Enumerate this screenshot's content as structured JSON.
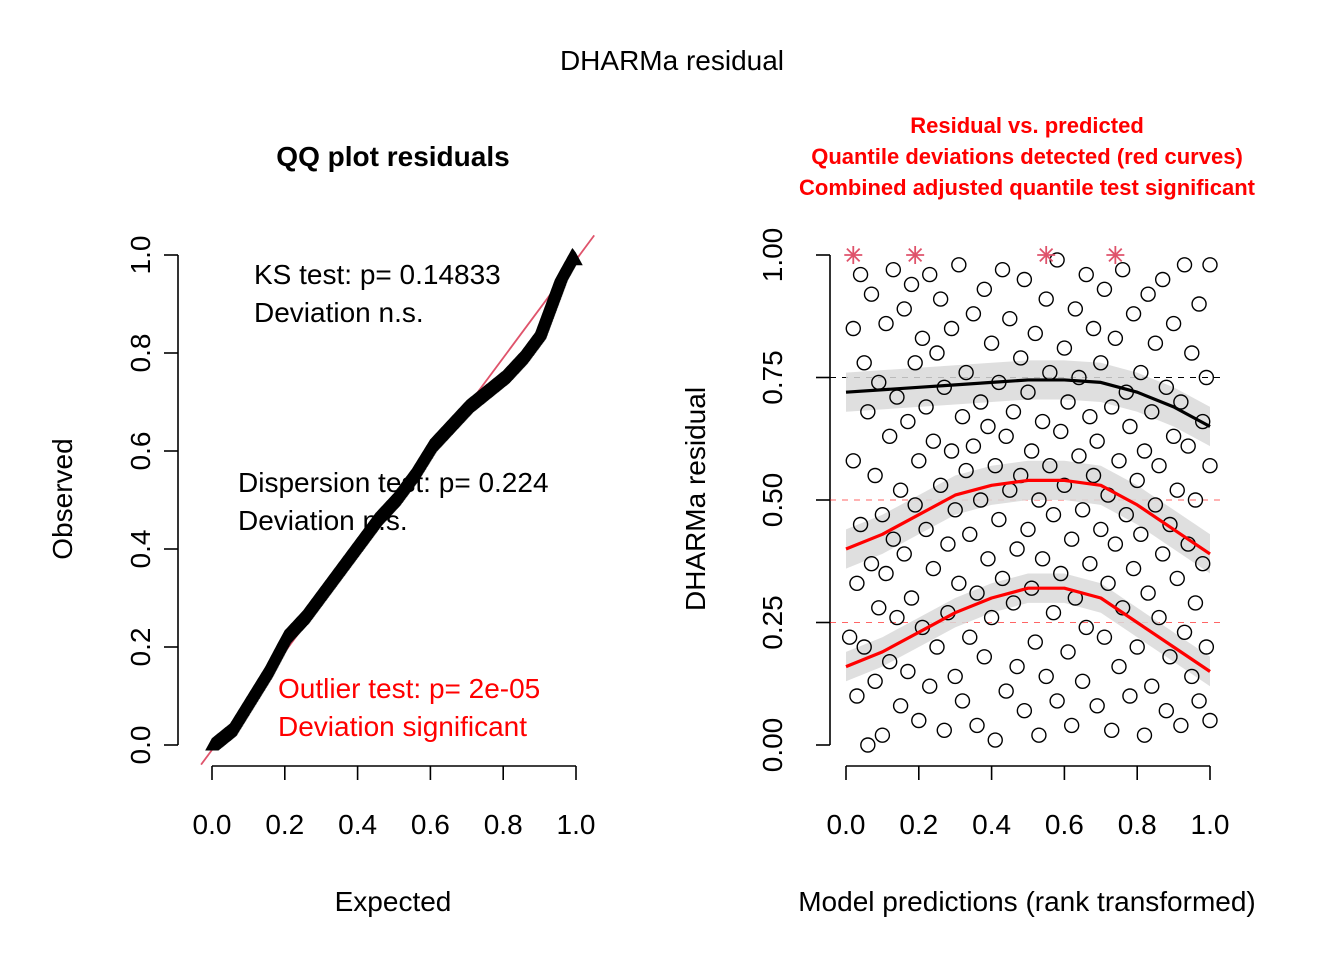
{
  "title": "DHARMa residual",
  "left_panel": {
    "title": "QQ plot residuals",
    "xlabel": "Expected",
    "ylabel": "Observed",
    "ks_line1": "KS test: p= 0.14833",
    "ks_line2": "Deviation  n.s.",
    "disp_line1": "Dispersion test: p= 0.224",
    "disp_line2": "Deviation  n.s.",
    "outlier_line1": "Outlier test: p= 2e-05",
    "outlier_line2": "Deviation  significant"
  },
  "right_panel": {
    "title_line1": "Residual vs. predicted",
    "title_line2": "Quantile deviations detected (red curves)",
    "title_line3": "Combined adjusted quantile test significant",
    "xlabel": "Model predictions (rank transformed)",
    "ylabel": "DHARMa residual"
  },
  "colors": {
    "red": "#ff0000",
    "reference_line": "#df536b",
    "band": "#d9d9d9"
  },
  "chart_data": [
    {
      "type": "scatter",
      "subtype": "qq",
      "title": "QQ plot residuals",
      "xlabel": "Expected",
      "ylabel": "Observed",
      "xticks": [
        "0.0",
        "0.2",
        "0.4",
        "0.6",
        "0.8",
        "1.0"
      ],
      "yticks": [
        "0.0",
        "0.2",
        "0.4",
        "0.6",
        "0.8",
        "1.0"
      ],
      "xlim": [
        0,
        1
      ],
      "ylim": [
        0,
        1
      ],
      "qq_curve": {
        "x": [
          0.0,
          0.05,
          0.1,
          0.15,
          0.2,
          0.25,
          0.3,
          0.35,
          0.4,
          0.45,
          0.5,
          0.55,
          0.6,
          0.65,
          0.7,
          0.75,
          0.8,
          0.85,
          0.9,
          0.93,
          0.96,
          0.99,
          1.0
        ],
        "y": [
          0.0,
          0.03,
          0.09,
          0.15,
          0.22,
          0.26,
          0.31,
          0.36,
          0.41,
          0.46,
          0.5,
          0.55,
          0.61,
          0.65,
          0.69,
          0.72,
          0.75,
          0.79,
          0.84,
          0.9,
          0.96,
          1.0,
          0.99
        ]
      },
      "reference_line": {
        "intercept": 0,
        "slope": 1
      },
      "annotations": [
        "KS test: p= 0.14833",
        "Deviation  n.s.",
        "Dispersion test: p= 0.224",
        "Deviation  n.s.",
        "Outlier test: p= 2e-05",
        "Deviation  significant"
      ]
    },
    {
      "type": "scatter",
      "title": "Residual vs. predicted",
      "xlabel": "Model predictions (rank transformed)",
      "ylabel": "DHARMa residual",
      "xticks": [
        "0.0",
        "0.2",
        "0.4",
        "0.6",
        "0.8",
        "1.0"
      ],
      "yticks": [
        "0.00",
        "0.25",
        "0.50",
        "0.75",
        "1.00"
      ],
      "xlim": [
        0,
        1
      ],
      "ylim": [
        0,
        1
      ],
      "reference_lines": [
        {
          "y": 0.25,
          "style": "dashed",
          "color": "#ff0000"
        },
        {
          "y": 0.5,
          "style": "dashed",
          "color": "#ff0000"
        },
        {
          "y": 0.75,
          "style": "dashed",
          "color": "#000000"
        }
      ],
      "quantile_curves": [
        {
          "quantile": 0.25,
          "color": "#ff0000",
          "x": [
            0,
            0.1,
            0.2,
            0.3,
            0.4,
            0.5,
            0.6,
            0.7,
            0.8,
            0.9,
            1.0
          ],
          "y": [
            0.16,
            0.19,
            0.23,
            0.27,
            0.3,
            0.32,
            0.32,
            0.3,
            0.25,
            0.2,
            0.15
          ],
          "band": 0.03
        },
        {
          "quantile": 0.5,
          "color": "#ff0000",
          "x": [
            0,
            0.1,
            0.2,
            0.3,
            0.4,
            0.5,
            0.6,
            0.7,
            0.8,
            0.9,
            1.0
          ],
          "y": [
            0.4,
            0.43,
            0.47,
            0.51,
            0.53,
            0.54,
            0.54,
            0.53,
            0.49,
            0.44,
            0.39
          ],
          "band": 0.04
        },
        {
          "quantile": 0.75,
          "color": "#000000",
          "x": [
            0,
            0.1,
            0.2,
            0.3,
            0.4,
            0.5,
            0.6,
            0.7,
            0.8,
            0.9,
            1.0
          ],
          "y": [
            0.72,
            0.725,
            0.73,
            0.735,
            0.74,
            0.745,
            0.745,
            0.74,
            0.72,
            0.69,
            0.65
          ],
          "band": 0.04
        }
      ],
      "outlier_markers": {
        "x": [
          0.02,
          0.19,
          0.55,
          0.74
        ],
        "y": [
          1.0,
          1.0,
          1.0,
          1.0
        ],
        "color": "#df536b"
      },
      "points": [
        [
          0.01,
          0.22
        ],
        [
          0.02,
          0.85
        ],
        [
          0.02,
          0.58
        ],
        [
          0.03,
          0.33
        ],
        [
          0.03,
          0.1
        ],
        [
          0.04,
          0.96
        ],
        [
          0.04,
          0.45
        ],
        [
          0.05,
          0.2
        ],
        [
          0.05,
          0.78
        ],
        [
          0.06,
          0.0
        ],
        [
          0.06,
          0.68
        ],
        [
          0.07,
          0.37
        ],
        [
          0.07,
          0.92
        ],
        [
          0.08,
          0.13
        ],
        [
          0.08,
          0.55
        ],
        [
          0.09,
          0.28
        ],
        [
          0.09,
          0.74
        ],
        [
          0.1,
          0.02
        ],
        [
          0.1,
          0.47
        ],
        [
          0.11,
          0.86
        ],
        [
          0.11,
          0.35
        ],
        [
          0.12,
          0.17
        ],
        [
          0.12,
          0.63
        ],
        [
          0.13,
          0.97
        ],
        [
          0.13,
          0.42
        ],
        [
          0.14,
          0.26
        ],
        [
          0.14,
          0.71
        ],
        [
          0.15,
          0.08
        ],
        [
          0.15,
          0.52
        ],
        [
          0.16,
          0.89
        ],
        [
          0.16,
          0.39
        ],
        [
          0.17,
          0.15
        ],
        [
          0.17,
          0.66
        ],
        [
          0.18,
          0.94
        ],
        [
          0.18,
          0.3
        ],
        [
          0.19,
          0.49
        ],
        [
          0.19,
          0.78
        ],
        [
          0.2,
          0.05
        ],
        [
          0.2,
          0.58
        ],
        [
          0.21,
          0.83
        ],
        [
          0.21,
          0.24
        ],
        [
          0.22,
          0.44
        ],
        [
          0.22,
          0.69
        ],
        [
          0.23,
          0.96
        ],
        [
          0.23,
          0.12
        ],
        [
          0.24,
          0.62
        ],
        [
          0.24,
          0.36
        ],
        [
          0.25,
          0.8
        ],
        [
          0.25,
          0.2
        ],
        [
          0.26,
          0.53
        ],
        [
          0.26,
          0.91
        ],
        [
          0.27,
          0.03
        ],
        [
          0.27,
          0.73
        ],
        [
          0.28,
          0.41
        ],
        [
          0.28,
          0.27
        ],
        [
          0.29,
          0.6
        ],
        [
          0.29,
          0.85
        ],
        [
          0.3,
          0.14
        ],
        [
          0.3,
          0.48
        ],
        [
          0.31,
          0.98
        ],
        [
          0.31,
          0.33
        ],
        [
          0.32,
          0.67
        ],
        [
          0.32,
          0.09
        ],
        [
          0.33,
          0.56
        ],
        [
          0.33,
          0.76
        ],
        [
          0.34,
          0.22
        ],
        [
          0.34,
          0.43
        ],
        [
          0.35,
          0.88
        ],
        [
          0.35,
          0.61
        ],
        [
          0.36,
          0.31
        ],
        [
          0.36,
          0.04
        ],
        [
          0.37,
          0.7
        ],
        [
          0.37,
          0.5
        ],
        [
          0.38,
          0.93
        ],
        [
          0.38,
          0.18
        ],
        [
          0.39,
          0.38
        ],
        [
          0.39,
          0.65
        ],
        [
          0.4,
          0.82
        ],
        [
          0.4,
          0.26
        ],
        [
          0.41,
          0.57
        ],
        [
          0.41,
          0.01
        ],
        [
          0.42,
          0.46
        ],
        [
          0.42,
          0.74
        ],
        [
          0.43,
          0.97
        ],
        [
          0.43,
          0.34
        ],
        [
          0.44,
          0.11
        ],
        [
          0.44,
          0.63
        ],
        [
          0.45,
          0.52
        ],
        [
          0.45,
          0.87
        ],
        [
          0.46,
          0.29
        ],
        [
          0.46,
          0.68
        ],
        [
          0.47,
          0.4
        ],
        [
          0.47,
          0.16
        ],
        [
          0.48,
          0.79
        ],
        [
          0.48,
          0.55
        ],
        [
          0.49,
          0.95
        ],
        [
          0.49,
          0.07
        ],
        [
          0.5,
          0.44
        ],
        [
          0.5,
          0.72
        ],
        [
          0.51,
          0.32
        ],
        [
          0.51,
          0.6
        ],
        [
          0.52,
          0.21
        ],
        [
          0.52,
          0.84
        ],
        [
          0.53,
          0.5
        ],
        [
          0.53,
          0.02
        ],
        [
          0.54,
          0.66
        ],
        [
          0.54,
          0.38
        ],
        [
          0.55,
          0.91
        ],
        [
          0.55,
          0.14
        ],
        [
          0.56,
          0.57
        ],
        [
          0.56,
          0.76
        ],
        [
          0.57,
          0.27
        ],
        [
          0.57,
          0.47
        ],
        [
          0.58,
          0.99
        ],
        [
          0.58,
          0.09
        ],
        [
          0.59,
          0.64
        ],
        [
          0.59,
          0.35
        ],
        [
          0.6,
          0.81
        ],
        [
          0.6,
          0.53
        ],
        [
          0.61,
          0.19
        ],
        [
          0.61,
          0.7
        ],
        [
          0.62,
          0.42
        ],
        [
          0.62,
          0.04
        ],
        [
          0.63,
          0.89
        ],
        [
          0.63,
          0.3
        ],
        [
          0.64,
          0.59
        ],
        [
          0.64,
          0.75
        ],
        [
          0.65,
          0.13
        ],
        [
          0.65,
          0.48
        ],
        [
          0.66,
          0.96
        ],
        [
          0.66,
          0.24
        ],
        [
          0.67,
          0.67
        ],
        [
          0.67,
          0.37
        ],
        [
          0.68,
          0.85
        ],
        [
          0.68,
          0.55
        ],
        [
          0.69,
          0.08
        ],
        [
          0.69,
          0.62
        ],
        [
          0.7,
          0.44
        ],
        [
          0.7,
          0.78
        ],
        [
          0.71,
          0.22
        ],
        [
          0.71,
          0.93
        ],
        [
          0.72,
          0.33
        ],
        [
          0.72,
          0.51
        ],
        [
          0.73,
          0.69
        ],
        [
          0.73,
          0.03
        ],
        [
          0.74,
          0.41
        ],
        [
          0.74,
          0.83
        ],
        [
          0.75,
          0.16
        ],
        [
          0.75,
          0.58
        ],
        [
          0.76,
          0.97
        ],
        [
          0.76,
          0.28
        ],
        [
          0.77,
          0.72
        ],
        [
          0.77,
          0.47
        ],
        [
          0.78,
          0.1
        ],
        [
          0.78,
          0.65
        ],
        [
          0.79,
          0.88
        ],
        [
          0.79,
          0.36
        ],
        [
          0.8,
          0.54
        ],
        [
          0.8,
          0.2
        ],
        [
          0.81,
          0.76
        ],
        [
          0.81,
          0.43
        ],
        [
          0.82,
          0.02
        ],
        [
          0.82,
          0.6
        ],
        [
          0.83,
          0.92
        ],
        [
          0.83,
          0.31
        ],
        [
          0.84,
          0.68
        ],
        [
          0.84,
          0.12
        ],
        [
          0.85,
          0.49
        ],
        [
          0.85,
          0.82
        ],
        [
          0.86,
          0.26
        ],
        [
          0.86,
          0.57
        ],
        [
          0.87,
          0.95
        ],
        [
          0.87,
          0.39
        ],
        [
          0.88,
          0.07
        ],
        [
          0.88,
          0.73
        ],
        [
          0.89,
          0.45
        ],
        [
          0.89,
          0.18
        ],
        [
          0.9,
          0.63
        ],
        [
          0.9,
          0.86
        ],
        [
          0.91,
          0.34
        ],
        [
          0.91,
          0.52
        ],
        [
          0.92,
          0.04
        ],
        [
          0.92,
          0.7
        ],
        [
          0.93,
          0.98
        ],
        [
          0.93,
          0.23
        ],
        [
          0.94,
          0.41
        ],
        [
          0.94,
          0.61
        ],
        [
          0.95,
          0.14
        ],
        [
          0.95,
          0.8
        ],
        [
          0.96,
          0.5
        ],
        [
          0.96,
          0.29
        ],
        [
          0.97,
          0.9
        ],
        [
          0.97,
          0.09
        ],
        [
          0.98,
          0.66
        ],
        [
          0.98,
          0.37
        ],
        [
          0.99,
          0.75
        ],
        [
          0.99,
          0.2
        ],
        [
          1.0,
          0.57
        ],
        [
          1.0,
          0.05
        ],
        [
          1.0,
          0.98
        ]
      ]
    }
  ]
}
